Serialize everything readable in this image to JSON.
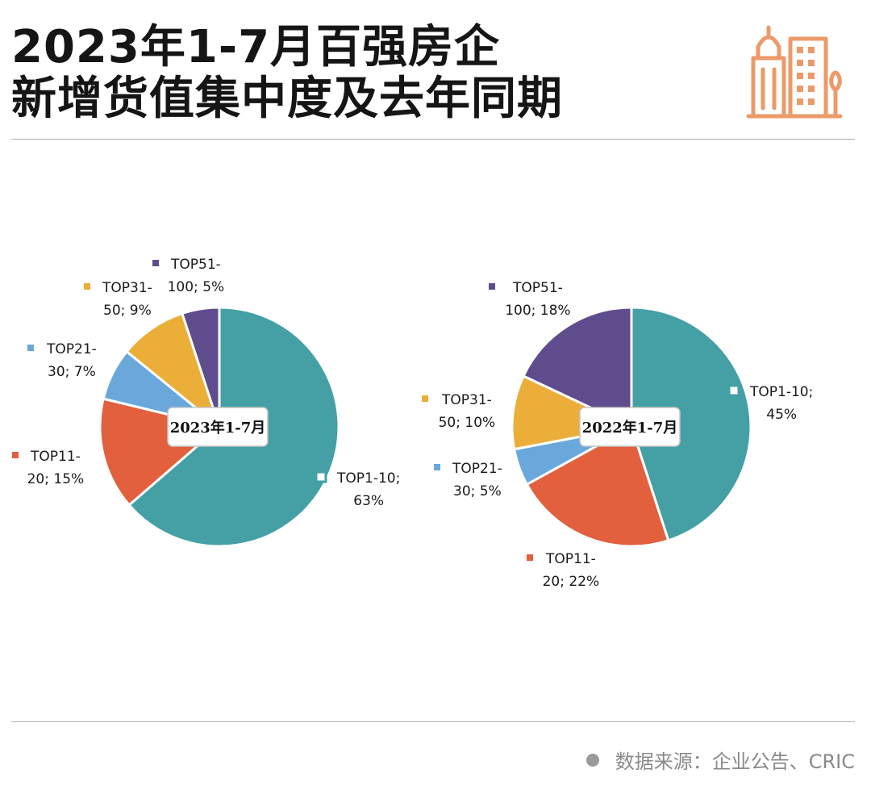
{
  "header": {
    "title_line1": "2023年1-7月百强房企",
    "title_line2": "新增货值集中度及去年同期"
  },
  "footer": {
    "source": "数据来源：企业公告、CRIC"
  },
  "colors": {
    "TOP1-10": "#44A0A4",
    "TOP11-20": "#E2603D",
    "TOP21-30": "#6AA8DC",
    "TOP31-50": "#EBAE39",
    "TOP51-100": "#5E4C8D",
    "logo": "#EB9A68"
  },
  "chart_data": [
    {
      "type": "pie",
      "center_label": "2023年1-7月",
      "slices": [
        {
          "name": "TOP1-10",
          "value": 63,
          "label_line1": "TOP1-10;",
          "label_line2": "63%"
        },
        {
          "name": "TOP11-20",
          "value": 15,
          "label_line1": "TOP11-",
          "label_line2": "20; 15%"
        },
        {
          "name": "TOP21-30",
          "value": 7,
          "label_line1": "TOP21-",
          "label_line2": "30; 7%"
        },
        {
          "name": "TOP31-50",
          "value": 9,
          "label_line1": "TOP31-",
          "label_line2": "50; 9%"
        },
        {
          "name": "TOP51-100",
          "value": 5,
          "label_line1": "TOP51-",
          "label_line2": "100; 5%"
        }
      ]
    },
    {
      "type": "pie",
      "center_label": "2022年1-7月",
      "slices": [
        {
          "name": "TOP1-10",
          "value": 45,
          "label_line1": "TOP1-10;",
          "label_line2": "45%"
        },
        {
          "name": "TOP11-20",
          "value": 22,
          "label_line1": "TOP11-",
          "label_line2": "20; 22%"
        },
        {
          "name": "TOP21-30",
          "value": 5,
          "label_line1": "TOP21-",
          "label_line2": "30; 5%"
        },
        {
          "name": "TOP31-50",
          "value": 10,
          "label_line1": "TOP31-",
          "label_line2": "50; 10%"
        },
        {
          "name": "TOP51-100",
          "value": 18,
          "label_line1": "TOP51-",
          "label_line2": "100; 18%"
        }
      ]
    }
  ]
}
